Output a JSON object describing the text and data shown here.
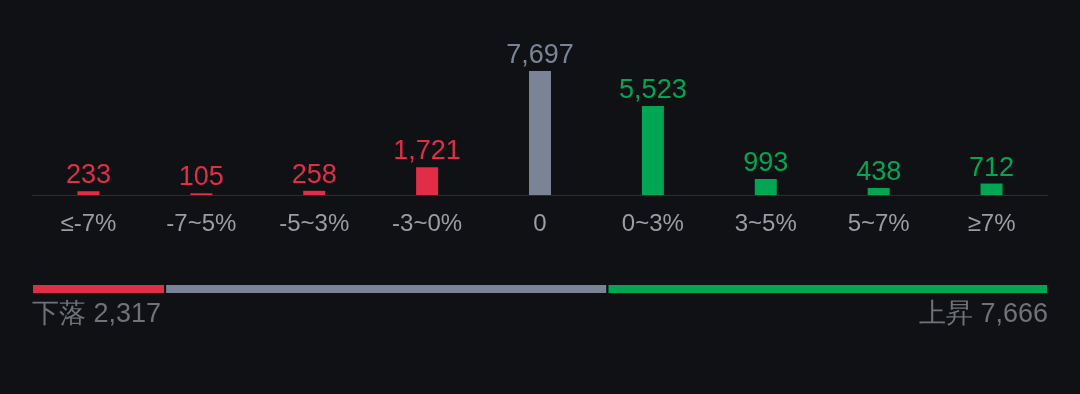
{
  "chart_data": [
    {
      "type": "bar",
      "categories": [
        "≤-7%",
        "-7~5%",
        "-5~3%",
        "-3~0%",
        "0",
        "0~3%",
        "3~5%",
        "5~7%",
        "≥7%"
      ],
      "values": [
        233,
        105,
        258,
        1721,
        7697,
        5523,
        993,
        438,
        712
      ],
      "value_labels": [
        "233",
        "105",
        "258",
        "1,721",
        "7,697",
        "5,523",
        "993",
        "438",
        "712"
      ],
      "colors": [
        "#e22d47",
        "#e22d47",
        "#e22d47",
        "#e22d47",
        "#7b8497",
        "#00a653",
        "#00a653",
        "#00a653",
        "#00a653"
      ]
    },
    {
      "type": "bar",
      "orientation": "horizontal",
      "stacked": true,
      "categories": [
        null
      ],
      "series": [
        {
          "color": "#e22d47",
          "values": [
            2317
          ],
          "value_labels": [
            "下落 2,317"
          ]
        },
        {
          "color": "#7b8497",
          "values": [
            7697
          ],
          "value_labels": [
            null
          ]
        },
        {
          "color": "#00a653",
          "values": [
            7666
          ],
          "value_labels": [
            "上昇 7,666"
          ]
        }
      ]
    }
  ]
}
